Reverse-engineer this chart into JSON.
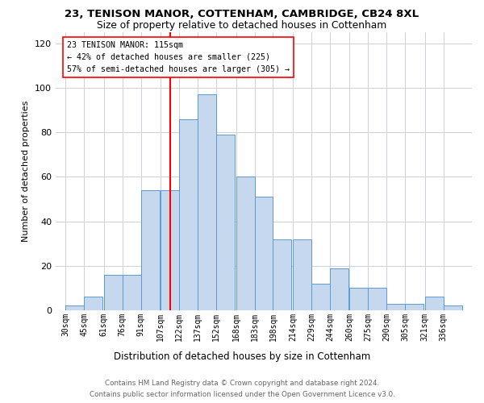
{
  "title1": "23, TENISON MANOR, COTTENHAM, CAMBRIDGE, CB24 8XL",
  "title2": "Size of property relative to detached houses in Cottenham",
  "xlabel": "Distribution of detached houses by size in Cottenham",
  "ylabel": "Number of detached properties",
  "bin_labels": [
    "30sqm",
    "45sqm",
    "61sqm",
    "76sqm",
    "91sqm",
    "107sqm",
    "122sqm",
    "137sqm",
    "152sqm",
    "168sqm",
    "183sqm",
    "198sqm",
    "214sqm",
    "229sqm",
    "244sqm",
    "260sqm",
    "275sqm",
    "290sqm",
    "305sqm",
    "321sqm",
    "336sqm"
  ],
  "bar_heights": [
    2,
    6,
    16,
    16,
    54,
    54,
    86,
    97,
    79,
    60,
    51,
    32,
    32,
    12,
    19,
    10,
    10,
    3,
    3,
    6,
    2
  ],
  "bar_color": "#c5d8ed",
  "bar_edge_color": "#5b9bd5",
  "vline_x": 114.5,
  "vline_color": "red",
  "annotation_line1": "23 TENISON MANOR: 115sqm",
  "annotation_line2": "← 42% of detached houses are smaller (225)",
  "annotation_line3": "57% of semi-detached houses are larger (305) →",
  "ylim": [
    0,
    125
  ],
  "yticks": [
    0,
    20,
    40,
    60,
    80,
    100,
    120
  ],
  "footer1": "Contains HM Land Registry data © Crown copyright and database right 2024.",
  "footer2": "Contains public sector information licensed under the Open Government Licence v3.0.",
  "bg_color": "white",
  "grid_color": "#d0d0d8"
}
